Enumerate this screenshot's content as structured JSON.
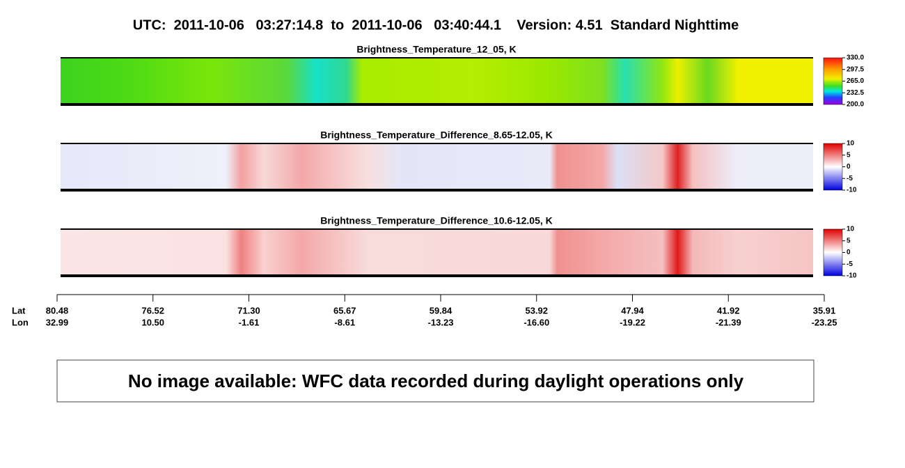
{
  "header": {
    "title": "UTC:  2011-10-06   03:27:14.8  to  2011-10-06   03:40:44.1    Version: 4.51  Standard Nighttime"
  },
  "panels": [
    {
      "title": "Brightness_Temperature_12_05, K",
      "colorbar_ticks": [
        "330.0",
        "297.5",
        "265.0",
        "232.5",
        "200.0"
      ]
    },
    {
      "title": "Brightness_Temperature_Difference_8.65-12.05, K",
      "colorbar_ticks": [
        "10",
        "5",
        "0",
        "-5",
        "-10"
      ]
    },
    {
      "title": "Brightness_Temperature_Difference_10.6-12.05, K",
      "colorbar_ticks": [
        "10",
        "5",
        "0",
        "-5",
        "-10"
      ]
    }
  ],
  "axis": {
    "lat_label": "Lat",
    "lon_label": "Lon",
    "lat": [
      "80.48",
      "76.52",
      "71.30",
      "65.67",
      "59.84",
      "53.92",
      "47.94",
      "41.92",
      "35.91"
    ],
    "lon": [
      "32.99",
      "10.50",
      "-1.61",
      "-8.61",
      "-13.23",
      "-16.60",
      "-19.22",
      "-21.39",
      "-23.25"
    ]
  },
  "notice": "No image available: WFC data recorded during daylight operations only"
}
